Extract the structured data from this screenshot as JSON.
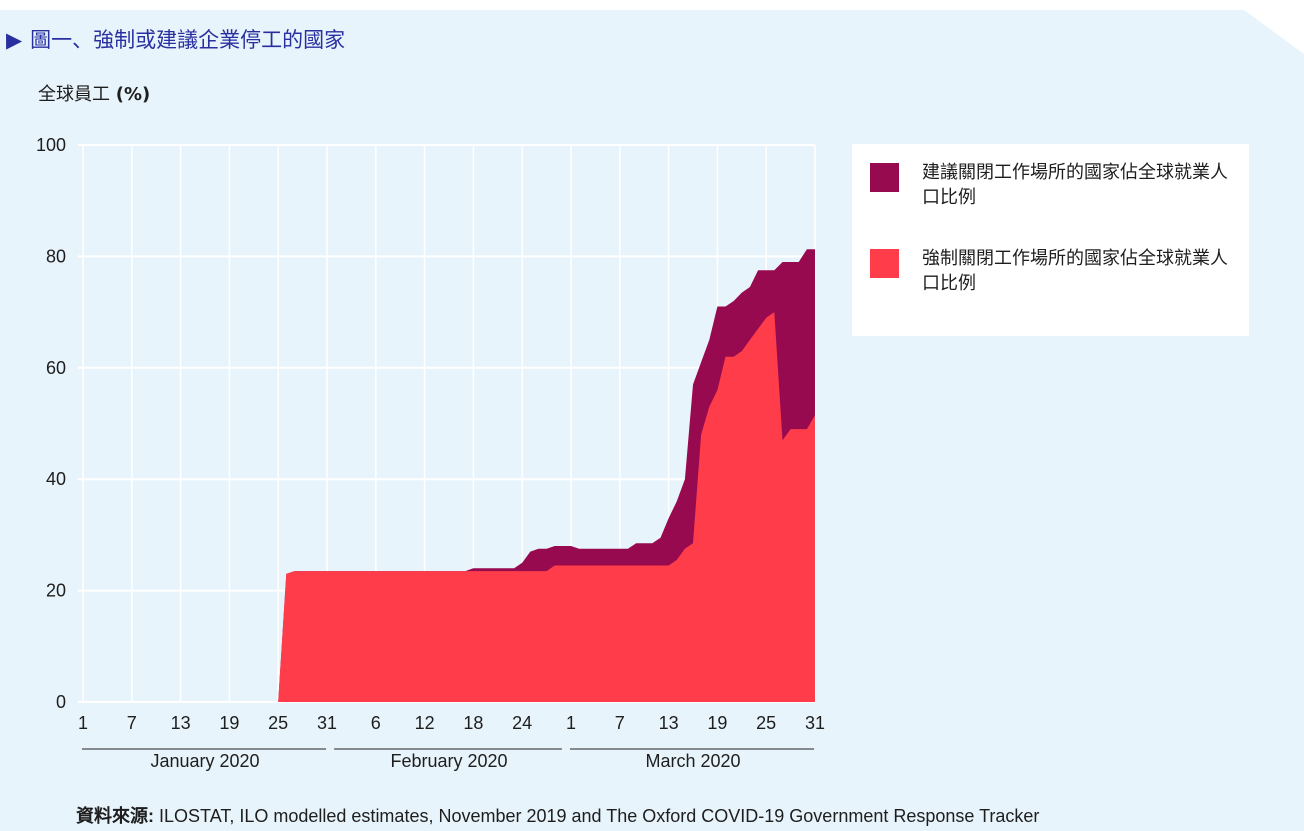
{
  "figure": {
    "title": "圖一、強制或建議企業停工的國家",
    "title_marker": "▶",
    "ylabel_text": "全球員工",
    "ylabel_unit": "(%)",
    "source_label": "資料來源:",
    "source_text": "ILOSTAT, ILO modelled estimates, November 2019 and The Oxford COVID-19 Government Response Tracker"
  },
  "colors": {
    "background": "#e8f4fb",
    "recommended": "#970a4f",
    "required": "#ff3c4a",
    "title": "#2a2fa0"
  },
  "chart_data": {
    "type": "area",
    "stacked": false,
    "ylim": [
      0,
      100
    ],
    "yticks": [
      0,
      20,
      40,
      60,
      80,
      100
    ],
    "grid": true,
    "legend_position": "right",
    "x_start": "2020-01-01",
    "x_end": "2020-03-31",
    "xtick_dates": [
      "2020-01-01",
      "2020-01-07",
      "2020-01-13",
      "2020-01-19",
      "2020-01-25",
      "2020-01-31",
      "2020-02-06",
      "2020-02-12",
      "2020-02-18",
      "2020-02-24",
      "2020-03-01",
      "2020-03-07",
      "2020-03-13",
      "2020-03-19",
      "2020-03-25",
      "2020-03-31"
    ],
    "xtick_labels": [
      "1",
      "7",
      "13",
      "19",
      "25",
      "31",
      "6",
      "12",
      "18",
      "24",
      "1",
      "7",
      "13",
      "19",
      "25",
      "31"
    ],
    "month_groups": [
      {
        "label": "January 2020",
        "start": "2020-01-01",
        "end": "2020-01-31"
      },
      {
        "label": "February 2020",
        "start": "2020-02-01",
        "end": "2020-02-29"
      },
      {
        "label": "March 2020",
        "start": "2020-03-01",
        "end": "2020-03-31"
      }
    ],
    "x": [
      "2020-01-01",
      "2020-01-24",
      "2020-01-25",
      "2020-01-26",
      "2020-01-27",
      "2020-01-28",
      "2020-02-16",
      "2020-02-17",
      "2020-02-18",
      "2020-02-19",
      "2020-02-20",
      "2020-02-21",
      "2020-02-22",
      "2020-02-23",
      "2020-02-24",
      "2020-02-25",
      "2020-02-26",
      "2020-02-27",
      "2020-02-28",
      "2020-02-29",
      "2020-03-01",
      "2020-03-02",
      "2020-03-03",
      "2020-03-04",
      "2020-03-05",
      "2020-03-06",
      "2020-03-07",
      "2020-03-08",
      "2020-03-09",
      "2020-03-10",
      "2020-03-11",
      "2020-03-12",
      "2020-03-13",
      "2020-03-14",
      "2020-03-15",
      "2020-03-16",
      "2020-03-17",
      "2020-03-18",
      "2020-03-19",
      "2020-03-20",
      "2020-03-21",
      "2020-03-22",
      "2020-03-23",
      "2020-03-24",
      "2020-03-25",
      "2020-03-26",
      "2020-03-27",
      "2020-03-28",
      "2020-03-29",
      "2020-03-30",
      "2020-03-31"
    ],
    "series": [
      {
        "name": "建議關閉工作場所的國家佔全球就業人口比例",
        "values": [
          0,
          0,
          0,
          23,
          23.5,
          23.5,
          23.5,
          23.5,
          24,
          24,
          24,
          24,
          24,
          24,
          25,
          27,
          27.5,
          27.5,
          28,
          28,
          28,
          27.5,
          27.5,
          27.5,
          27.5,
          27.5,
          27.5,
          27.5,
          28.5,
          28.5,
          28.5,
          29.5,
          33,
          36,
          40,
          57,
          61,
          65,
          71,
          71,
          72,
          73.5,
          74.5,
          77.5,
          77.5,
          77.5,
          79,
          79,
          79,
          81.3,
          81.3
        ]
      },
      {
        "name": "強制關閉工作場所的國家佔全球就業人口比例",
        "values": [
          0,
          0,
          0,
          23,
          23.5,
          23.5,
          23.5,
          23.5,
          23.5,
          23.5,
          23.5,
          23.5,
          23.5,
          23.5,
          23.5,
          23.5,
          23.5,
          23.5,
          24.5,
          24.5,
          24.5,
          24.5,
          24.5,
          24.5,
          24.5,
          24.5,
          24.5,
          24.5,
          24.5,
          24.5,
          24.5,
          24.5,
          24.5,
          25.5,
          27.5,
          28.5,
          48,
          53,
          56,
          62,
          62,
          63,
          65,
          67,
          69,
          70,
          47,
          49,
          49,
          49,
          51.5
        ]
      }
    ]
  }
}
